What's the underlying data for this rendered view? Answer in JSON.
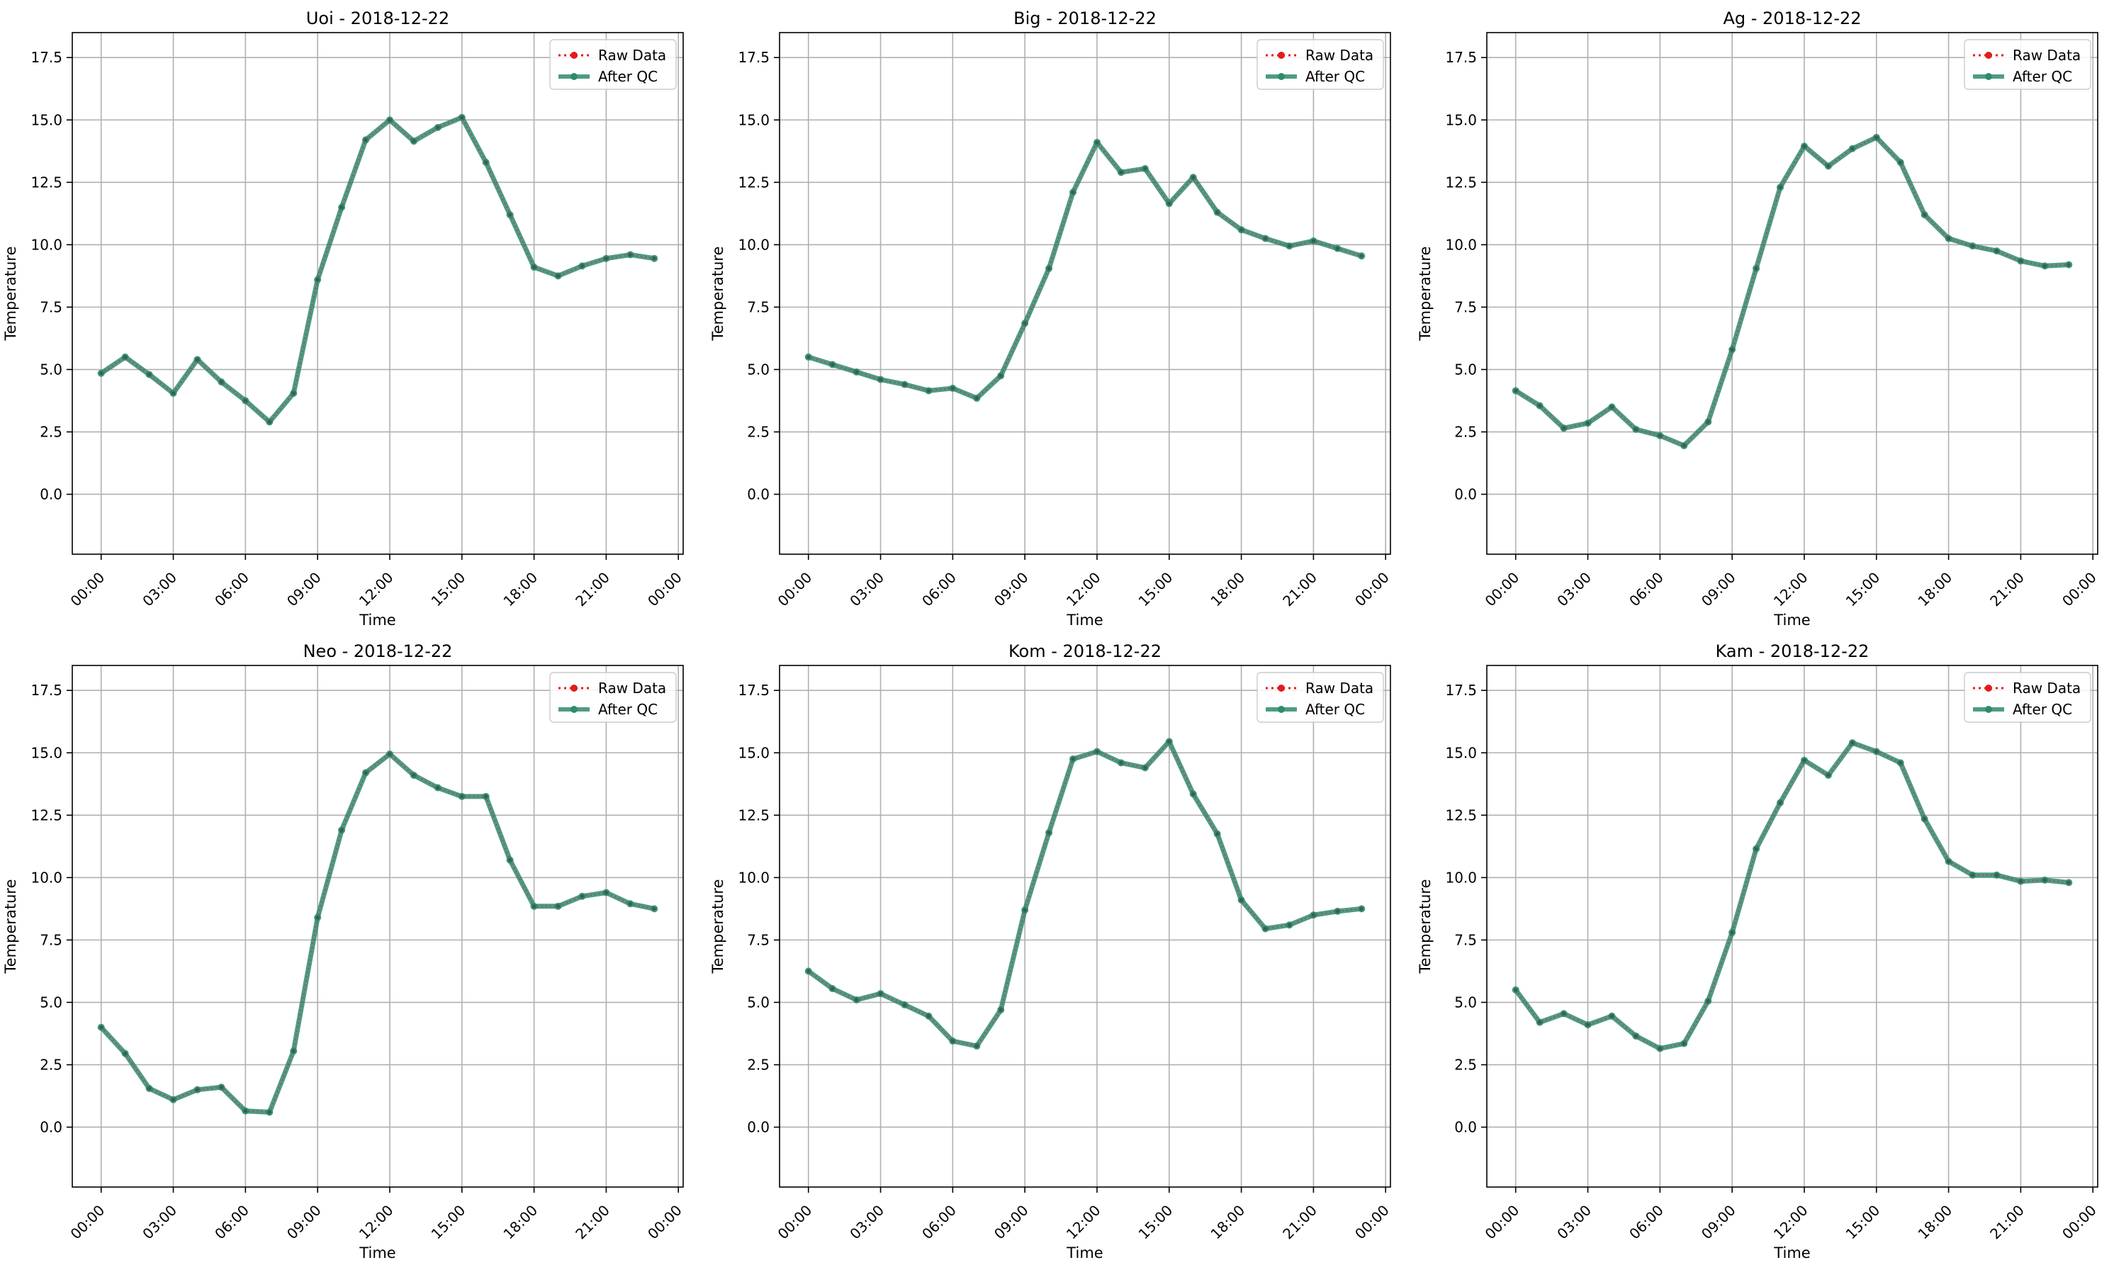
{
  "colors": {
    "raw": "#e41a1c",
    "qc": "#2e8b6e",
    "grid": "#b0b0b0",
    "axes": "#000000"
  },
  "chart_data": [
    {
      "type": "line",
      "title": "Uoi - 2018-12-22",
      "xlabel": "Time",
      "ylabel": "Temperature",
      "x_unit": "hour of day",
      "xlim": [
        -1.2,
        24.2
      ],
      "ylim": [
        -2.4,
        18.5
      ],
      "xticks": [
        0,
        3,
        6,
        9,
        12,
        15,
        18,
        21,
        24
      ],
      "xtick_labels": [
        "00:00",
        "03:00",
        "06:00",
        "09:00",
        "12:00",
        "15:00",
        "18:00",
        "21:00",
        "00:00"
      ],
      "yticks": [
        0.0,
        2.5,
        5.0,
        7.5,
        10.0,
        12.5,
        15.0,
        17.5
      ],
      "ytick_labels": [
        "0.0",
        "2.5",
        "5.0",
        "7.5",
        "10.0",
        "12.5",
        "15.0",
        "17.5"
      ],
      "grid": true,
      "legend_position": "upper right",
      "x": [
        0,
        1,
        2,
        3,
        4,
        5,
        6,
        7,
        8,
        9,
        10,
        11,
        12,
        13,
        14,
        15,
        16,
        17,
        18,
        19,
        20,
        21,
        22,
        23
      ],
      "series": [
        {
          "name": "Raw Data",
          "style": "dotted-red-markers",
          "values": [
            4.85,
            5.5,
            4.8,
            4.05,
            5.4,
            4.5,
            3.75,
            2.9,
            4.05,
            8.6,
            11.5,
            14.2,
            15.0,
            14.15,
            14.7,
            15.1,
            13.3,
            11.2,
            9.1,
            8.75,
            9.15,
            9.45,
            9.6,
            9.45
          ]
        },
        {
          "name": "After QC",
          "style": "solid-green-markers",
          "values": [
            4.85,
            5.5,
            4.8,
            4.05,
            5.4,
            4.5,
            3.75,
            2.9,
            4.05,
            8.6,
            11.5,
            14.2,
            15.0,
            14.15,
            14.7,
            15.1,
            13.3,
            11.2,
            9.1,
            8.75,
            9.15,
            9.45,
            9.6,
            9.45
          ]
        }
      ]
    },
    {
      "type": "line",
      "title": "Big - 2018-12-22",
      "xlabel": "Time",
      "ylabel": "Temperature",
      "x_unit": "hour of day",
      "xlim": [
        -1.2,
        24.2
      ],
      "ylim": [
        -2.4,
        18.5
      ],
      "xticks": [
        0,
        3,
        6,
        9,
        12,
        15,
        18,
        21,
        24
      ],
      "xtick_labels": [
        "00:00",
        "03:00",
        "06:00",
        "09:00",
        "12:00",
        "15:00",
        "18:00",
        "21:00",
        "00:00"
      ],
      "yticks": [
        0.0,
        2.5,
        5.0,
        7.5,
        10.0,
        12.5,
        15.0,
        17.5
      ],
      "ytick_labels": [
        "0.0",
        "2.5",
        "5.0",
        "7.5",
        "10.0",
        "12.5",
        "15.0",
        "17.5"
      ],
      "grid": true,
      "legend_position": "upper right",
      "x": [
        0,
        1,
        2,
        3,
        4,
        5,
        6,
        7,
        8,
        9,
        10,
        11,
        12,
        13,
        14,
        15,
        16,
        17,
        18,
        19,
        20,
        21,
        22,
        23
      ],
      "series": [
        {
          "name": "Raw Data",
          "style": "dotted-red-markers",
          "values": [
            5.5,
            5.2,
            4.9,
            4.6,
            4.4,
            4.15,
            4.25,
            3.85,
            4.75,
            6.85,
            9.05,
            12.1,
            14.1,
            12.9,
            13.05,
            11.65,
            12.7,
            11.3,
            10.6,
            10.25,
            9.95,
            10.15,
            9.85,
            9.55
          ]
        },
        {
          "name": "After QC",
          "style": "solid-green-markers",
          "values": [
            5.5,
            5.2,
            4.9,
            4.6,
            4.4,
            4.15,
            4.25,
            3.85,
            4.75,
            6.85,
            9.05,
            12.1,
            14.1,
            12.9,
            13.05,
            11.65,
            12.7,
            11.3,
            10.6,
            10.25,
            9.95,
            10.15,
            9.85,
            9.55
          ]
        }
      ]
    },
    {
      "type": "line",
      "title": "Ag - 2018-12-22",
      "xlabel": "Time",
      "ylabel": "Temperature",
      "x_unit": "hour of day",
      "xlim": [
        -1.2,
        24.2
      ],
      "ylim": [
        -2.4,
        18.5
      ],
      "xticks": [
        0,
        3,
        6,
        9,
        12,
        15,
        18,
        21,
        24
      ],
      "xtick_labels": [
        "00:00",
        "03:00",
        "06:00",
        "09:00",
        "12:00",
        "15:00",
        "18:00",
        "21:00",
        "00:00"
      ],
      "yticks": [
        0.0,
        2.5,
        5.0,
        7.5,
        10.0,
        12.5,
        15.0,
        17.5
      ],
      "ytick_labels": [
        "0.0",
        "2.5",
        "5.0",
        "7.5",
        "10.0",
        "12.5",
        "15.0",
        "17.5"
      ],
      "grid": true,
      "legend_position": "upper right",
      "x": [
        0,
        1,
        2,
        3,
        4,
        5,
        6,
        7,
        8,
        9,
        10,
        11,
        12,
        13,
        14,
        15,
        16,
        17,
        18,
        19,
        20,
        21,
        22,
        23
      ],
      "series": [
        {
          "name": "Raw Data",
          "style": "dotted-red-markers",
          "values": [
            4.15,
            3.55,
            2.65,
            2.85,
            3.5,
            2.6,
            2.35,
            1.95,
            2.9,
            5.8,
            9.05,
            12.3,
            13.95,
            13.15,
            13.85,
            14.3,
            13.3,
            11.2,
            10.25,
            9.95,
            9.75,
            9.35,
            9.15,
            9.2
          ]
        },
        {
          "name": "After QC",
          "style": "solid-green-markers",
          "values": [
            4.15,
            3.55,
            2.65,
            2.85,
            3.5,
            2.6,
            2.35,
            1.95,
            2.9,
            5.8,
            9.05,
            12.3,
            13.95,
            13.15,
            13.85,
            14.3,
            13.3,
            11.2,
            10.25,
            9.95,
            9.75,
            9.35,
            9.15,
            9.2
          ]
        }
      ]
    },
    {
      "type": "line",
      "title": "Neo - 2018-12-22",
      "xlabel": "Time",
      "ylabel": "Temperature",
      "x_unit": "hour of day",
      "xlim": [
        -1.2,
        24.2
      ],
      "ylim": [
        -2.4,
        18.5
      ],
      "xticks": [
        0,
        3,
        6,
        9,
        12,
        15,
        18,
        21,
        24
      ],
      "xtick_labels": [
        "00:00",
        "03:00",
        "06:00",
        "09:00",
        "12:00",
        "15:00",
        "18:00",
        "21:00",
        "00:00"
      ],
      "yticks": [
        0.0,
        2.5,
        5.0,
        7.5,
        10.0,
        12.5,
        15.0,
        17.5
      ],
      "ytick_labels": [
        "0.0",
        "2.5",
        "5.0",
        "7.5",
        "10.0",
        "12.5",
        "15.0",
        "17.5"
      ],
      "grid": true,
      "legend_position": "upper right",
      "x": [
        0,
        1,
        2,
        3,
        4,
        5,
        6,
        7,
        8,
        9,
        10,
        11,
        12,
        13,
        14,
        15,
        16,
        17,
        18,
        19,
        20,
        21,
        22,
        23
      ],
      "series": [
        {
          "name": "Raw Data",
          "style": "dotted-red-markers",
          "values": [
            4.0,
            2.95,
            1.55,
            1.1,
            1.5,
            1.6,
            0.65,
            0.6,
            3.05,
            8.4,
            11.9,
            14.2,
            14.95,
            14.1,
            13.6,
            13.25,
            13.25,
            10.7,
            8.85,
            8.85,
            9.25,
            9.4,
            8.95,
            8.75
          ]
        },
        {
          "name": "After QC",
          "style": "solid-green-markers",
          "values": [
            4.0,
            2.95,
            1.55,
            1.1,
            1.5,
            1.6,
            0.65,
            0.6,
            3.05,
            8.4,
            11.9,
            14.2,
            14.95,
            14.1,
            13.6,
            13.25,
            13.25,
            10.7,
            8.85,
            8.85,
            9.25,
            9.4,
            8.95,
            8.75
          ]
        }
      ]
    },
    {
      "type": "line",
      "title": "Kom - 2018-12-22",
      "xlabel": "Time",
      "ylabel": "Temperature",
      "x_unit": "hour of day",
      "xlim": [
        -1.2,
        24.2
      ],
      "ylim": [
        -2.4,
        18.5
      ],
      "xticks": [
        0,
        3,
        6,
        9,
        12,
        15,
        18,
        21,
        24
      ],
      "xtick_labels": [
        "00:00",
        "03:00",
        "06:00",
        "09:00",
        "12:00",
        "15:00",
        "18:00",
        "21:00",
        "00:00"
      ],
      "yticks": [
        0.0,
        2.5,
        5.0,
        7.5,
        10.0,
        12.5,
        15.0,
        17.5
      ],
      "ytick_labels": [
        "0.0",
        "2.5",
        "5.0",
        "7.5",
        "10.0",
        "12.5",
        "15.0",
        "17.5"
      ],
      "grid": true,
      "legend_position": "upper right",
      "x": [
        0,
        1,
        2,
        3,
        4,
        5,
        6,
        7,
        8,
        9,
        10,
        11,
        12,
        13,
        14,
        15,
        16,
        17,
        18,
        19,
        20,
        21,
        22,
        23
      ],
      "series": [
        {
          "name": "Raw Data",
          "style": "dotted-red-markers",
          "values": [
            6.25,
            5.55,
            5.1,
            5.35,
            4.9,
            4.45,
            3.45,
            3.25,
            4.7,
            8.7,
            11.8,
            14.75,
            15.05,
            14.6,
            14.4,
            15.45,
            13.35,
            11.75,
            9.1,
            7.95,
            8.1,
            8.5,
            8.65,
            8.75
          ]
        },
        {
          "name": "After QC",
          "style": "solid-green-markers",
          "values": [
            6.25,
            5.55,
            5.1,
            5.35,
            4.9,
            4.45,
            3.45,
            3.25,
            4.7,
            8.7,
            11.8,
            14.75,
            15.05,
            14.6,
            14.4,
            15.45,
            13.35,
            11.75,
            9.1,
            7.95,
            8.1,
            8.5,
            8.65,
            8.75
          ]
        }
      ]
    },
    {
      "type": "line",
      "title": "Kam - 2018-12-22",
      "xlabel": "Time",
      "ylabel": "Temperature",
      "x_unit": "hour of day",
      "xlim": [
        -1.2,
        24.2
      ],
      "ylim": [
        -2.4,
        18.5
      ],
      "xticks": [
        0,
        3,
        6,
        9,
        12,
        15,
        18,
        21,
        24
      ],
      "xtick_labels": [
        "00:00",
        "03:00",
        "06:00",
        "09:00",
        "12:00",
        "15:00",
        "18:00",
        "21:00",
        "00:00"
      ],
      "yticks": [
        0.0,
        2.5,
        5.0,
        7.5,
        10.0,
        12.5,
        15.0,
        17.5
      ],
      "ytick_labels": [
        "0.0",
        "2.5",
        "5.0",
        "7.5",
        "10.0",
        "12.5",
        "15.0",
        "17.5"
      ],
      "grid": true,
      "legend_position": "upper right",
      "x": [
        0,
        1,
        2,
        3,
        4,
        5,
        6,
        7,
        8,
        9,
        10,
        11,
        12,
        13,
        14,
        15,
        16,
        17,
        18,
        19,
        20,
        21,
        22,
        23
      ],
      "series": [
        {
          "name": "Raw Data",
          "style": "dotted-red-markers",
          "values": [
            5.5,
            4.2,
            4.55,
            4.1,
            4.45,
            3.65,
            3.15,
            3.35,
            5.05,
            7.8,
            11.15,
            13.0,
            14.7,
            14.1,
            15.4,
            15.05,
            14.6,
            12.35,
            10.65,
            10.1,
            10.1,
            9.85,
            9.9,
            9.8
          ]
        },
        {
          "name": "After QC",
          "style": "solid-green-markers",
          "values": [
            5.5,
            4.2,
            4.55,
            4.1,
            4.45,
            3.65,
            3.15,
            3.35,
            5.05,
            7.8,
            11.15,
            13.0,
            14.7,
            14.1,
            15.4,
            15.05,
            14.6,
            12.35,
            10.65,
            10.1,
            10.1,
            9.85,
            9.9,
            9.8
          ]
        }
      ]
    }
  ]
}
